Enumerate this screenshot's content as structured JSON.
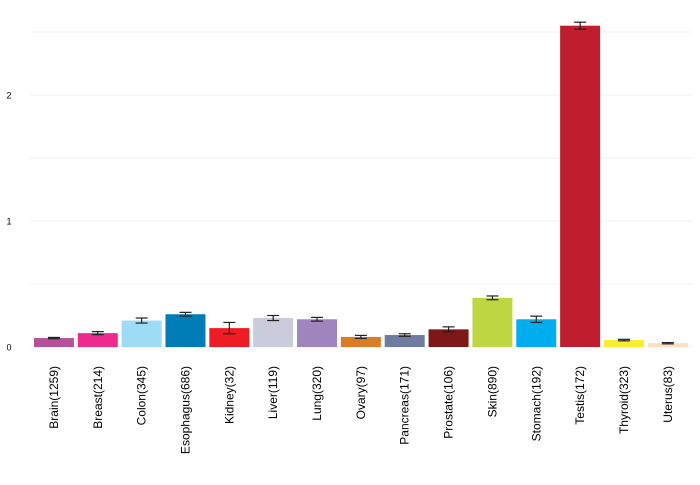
{
  "chart_data": {
    "type": "bar",
    "title": "",
    "xlabel": "",
    "ylabel": "",
    "ylim": [
      0,
      2.6
    ],
    "yticks": [
      0,
      1,
      2
    ],
    "grid": true,
    "categories": [
      "Brain(1259)",
      "Breast(214)",
      "Colon(345)",
      "Esophagus(686)",
      "Kidney(32)",
      "Liver(119)",
      "Lung(320)",
      "Ovary(97)",
      "Pancreas(171)",
      "Prostate(106)",
      "Skin(890)",
      "Stomach(192)",
      "Testis(172)",
      "Thyroid(323)",
      "Uterus(83)"
    ],
    "values": [
      0.071,
      0.11,
      0.21,
      0.26,
      0.15,
      0.23,
      0.22,
      0.08,
      0.095,
      0.14,
      0.39,
      0.22,
      2.55,
      0.055,
      0.03
    ],
    "errors": [
      0.005,
      0.012,
      0.02,
      0.015,
      0.045,
      0.02,
      0.015,
      0.012,
      0.01,
      0.02,
      0.015,
      0.025,
      0.028,
      0.006,
      0.005
    ],
    "colors": [
      "#b5519a",
      "#ee2a8e",
      "#9edcf6",
      "#007db7",
      "#ee1c25",
      "#cacbdb",
      "#a084bd",
      "#d97d26",
      "#6e7ca0",
      "#7e1718",
      "#bfd643",
      "#00aeef",
      "#be1e2d",
      "#f9ed32",
      "#fadfc1"
    ]
  }
}
